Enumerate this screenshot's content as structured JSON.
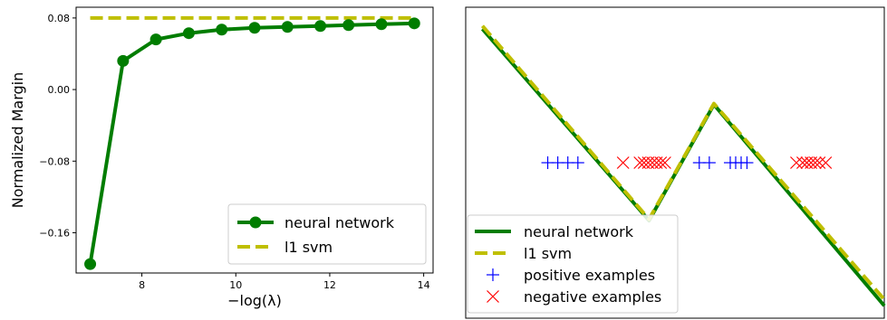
{
  "chart_data": [
    {
      "type": "line",
      "title": "",
      "xlabel": "−log(λ)",
      "ylabel": "Normalized Margin",
      "xlim": [
        6.6,
        14.2
      ],
      "ylim": [
        -0.205,
        0.092
      ],
      "xticks": [
        8,
        10,
        12,
        14
      ],
      "xtick_labels": [
        "8",
        "10",
        "12",
        "14"
      ],
      "yticks": [
        -0.16,
        -0.08,
        0.0,
        0.08
      ],
      "ytick_labels": [
        "−0.16",
        "−0.08",
        "0.00",
        "0.08"
      ],
      "grid": false,
      "legend_position": "lower-right",
      "series": [
        {
          "name": "neural network",
          "color": "#007d00",
          "style": "solid-with-markers",
          "x": [
            6.9,
            7.6,
            8.3,
            9.0,
            9.7,
            10.4,
            11.1,
            11.8,
            12.4,
            13.1,
            13.8
          ],
          "y": [
            -0.195,
            0.032,
            0.056,
            0.063,
            0.067,
            0.069,
            0.07,
            0.071,
            0.072,
            0.073,
            0.074
          ]
        },
        {
          "name": "l1 svm",
          "color": "#bfbf00",
          "style": "dashed",
          "x": [
            6.9,
            13.8
          ],
          "y": [
            0.08,
            0.08
          ]
        }
      ]
    },
    {
      "type": "line",
      "title": "",
      "xlabel": "",
      "ylabel": "",
      "xlim": [
        0,
        1
      ],
      "ylim": [
        0,
        1
      ],
      "grid": false,
      "legend_position": "lower-left",
      "series": [
        {
          "name": "neural network",
          "color": "#007d00",
          "style": "solid",
          "x": [
            0.04,
            0.438,
            0.593,
            1.0
          ],
          "y": [
            0.93,
            0.314,
            0.687,
            0.04
          ]
        },
        {
          "name": "l1 svm",
          "color": "#bfbf00",
          "style": "dashed",
          "x": [
            0.04,
            0.438,
            0.593,
            1.0
          ],
          "y": [
            0.94,
            0.318,
            0.69,
            0.06
          ]
        },
        {
          "name": "positive examples",
          "color": "#0000ff",
          "style": "marker-plus",
          "x": [
            0.196,
            0.22,
            0.244,
            0.268,
            0.558,
            0.582,
            0.632,
            0.645,
            0.658,
            0.672
          ],
          "y": [
            0.5,
            0.5,
            0.5,
            0.5,
            0.5,
            0.5,
            0.5,
            0.5,
            0.5,
            0.5
          ]
        },
        {
          "name": "negative examples",
          "color": "#ff0000",
          "style": "marker-x",
          "x": [
            0.376,
            0.416,
            0.426,
            0.436,
            0.446,
            0.456,
            0.466,
            0.476,
            0.79,
            0.805,
            0.815,
            0.825,
            0.835,
            0.845,
            0.86
          ],
          "y": [
            0.5,
            0.5,
            0.5,
            0.5,
            0.5,
            0.5,
            0.5,
            0.5,
            0.5,
            0.5,
            0.5,
            0.5,
            0.5,
            0.5,
            0.5
          ]
        }
      ]
    }
  ]
}
